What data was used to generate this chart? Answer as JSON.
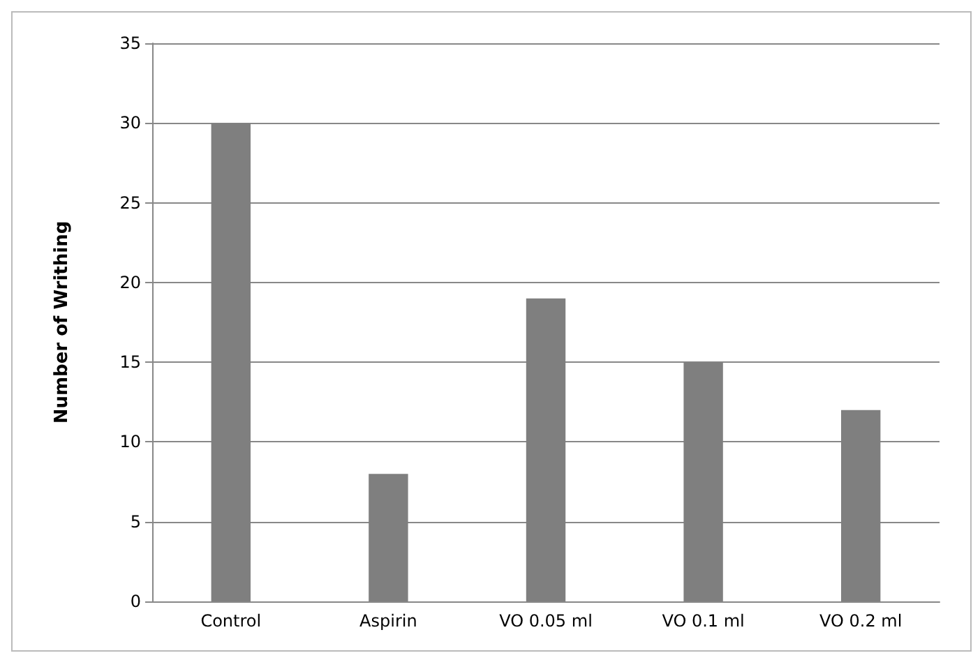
{
  "chart_data": {
    "type": "bar",
    "ylabel": "Number of Writhing",
    "categories": [
      "Control",
      "Aspirin",
      "VO 0.05 ml",
      "VO 0.1 ml",
      "VO 0.2 ml"
    ],
    "values": [
      30,
      8,
      19,
      15,
      12
    ],
    "color": "#7f7f7f",
    "ylim": [
      0,
      35
    ],
    "yticks": [
      0,
      5,
      10,
      15,
      20,
      25,
      30,
      35
    ],
    "grid": "y"
  }
}
